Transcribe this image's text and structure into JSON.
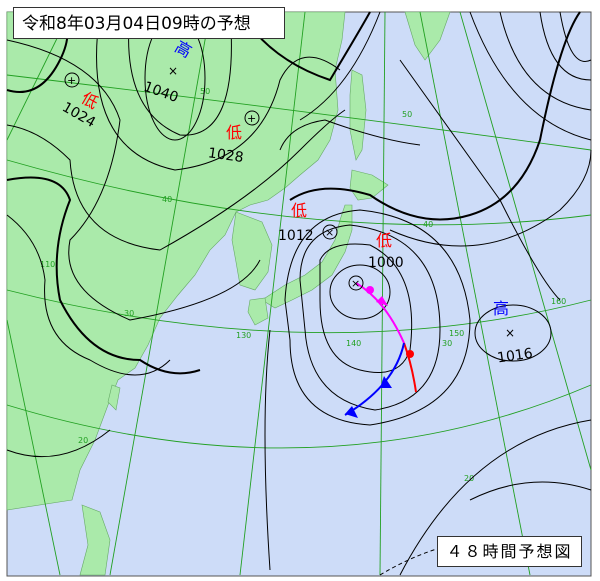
{
  "title": "令和8年03月04日09時の予想",
  "caption": "４８時間予想図",
  "colors": {
    "land": "#aaeaaa",
    "sea": "#cddcf8",
    "grid": "#22a022",
    "high": "#0000ff",
    "low": "#ff0000",
    "warm_front": "#ff0000",
    "cold_front": "#0000ff",
    "occluded_front": "#ff00ff",
    "isobar": "#000000"
  },
  "systems": [
    {
      "type_label": "高",
      "pressure": "1040",
      "kind": "high"
    },
    {
      "type_label": "低",
      "pressure": "1024",
      "kind": "low"
    },
    {
      "type_label": "低",
      "pressure": "1028",
      "kind": "low"
    },
    {
      "type_label": "低",
      "pressure": "1012",
      "kind": "low"
    },
    {
      "type_label": "低",
      "pressure": "1000",
      "kind": "low"
    },
    {
      "type_label": "高",
      "pressure": "1016",
      "kind": "high"
    }
  ],
  "grid_labels": {
    "lat50a": "50",
    "lat50b": "50",
    "lat40a": "40",
    "lat40b": "40",
    "lat30a": "30",
    "lat30b": "30",
    "lat20a": "20",
    "lat20b": "20",
    "lon110": "110",
    "lon130": "130",
    "lon140": "140",
    "lon150": "150",
    "lon160": "160"
  }
}
